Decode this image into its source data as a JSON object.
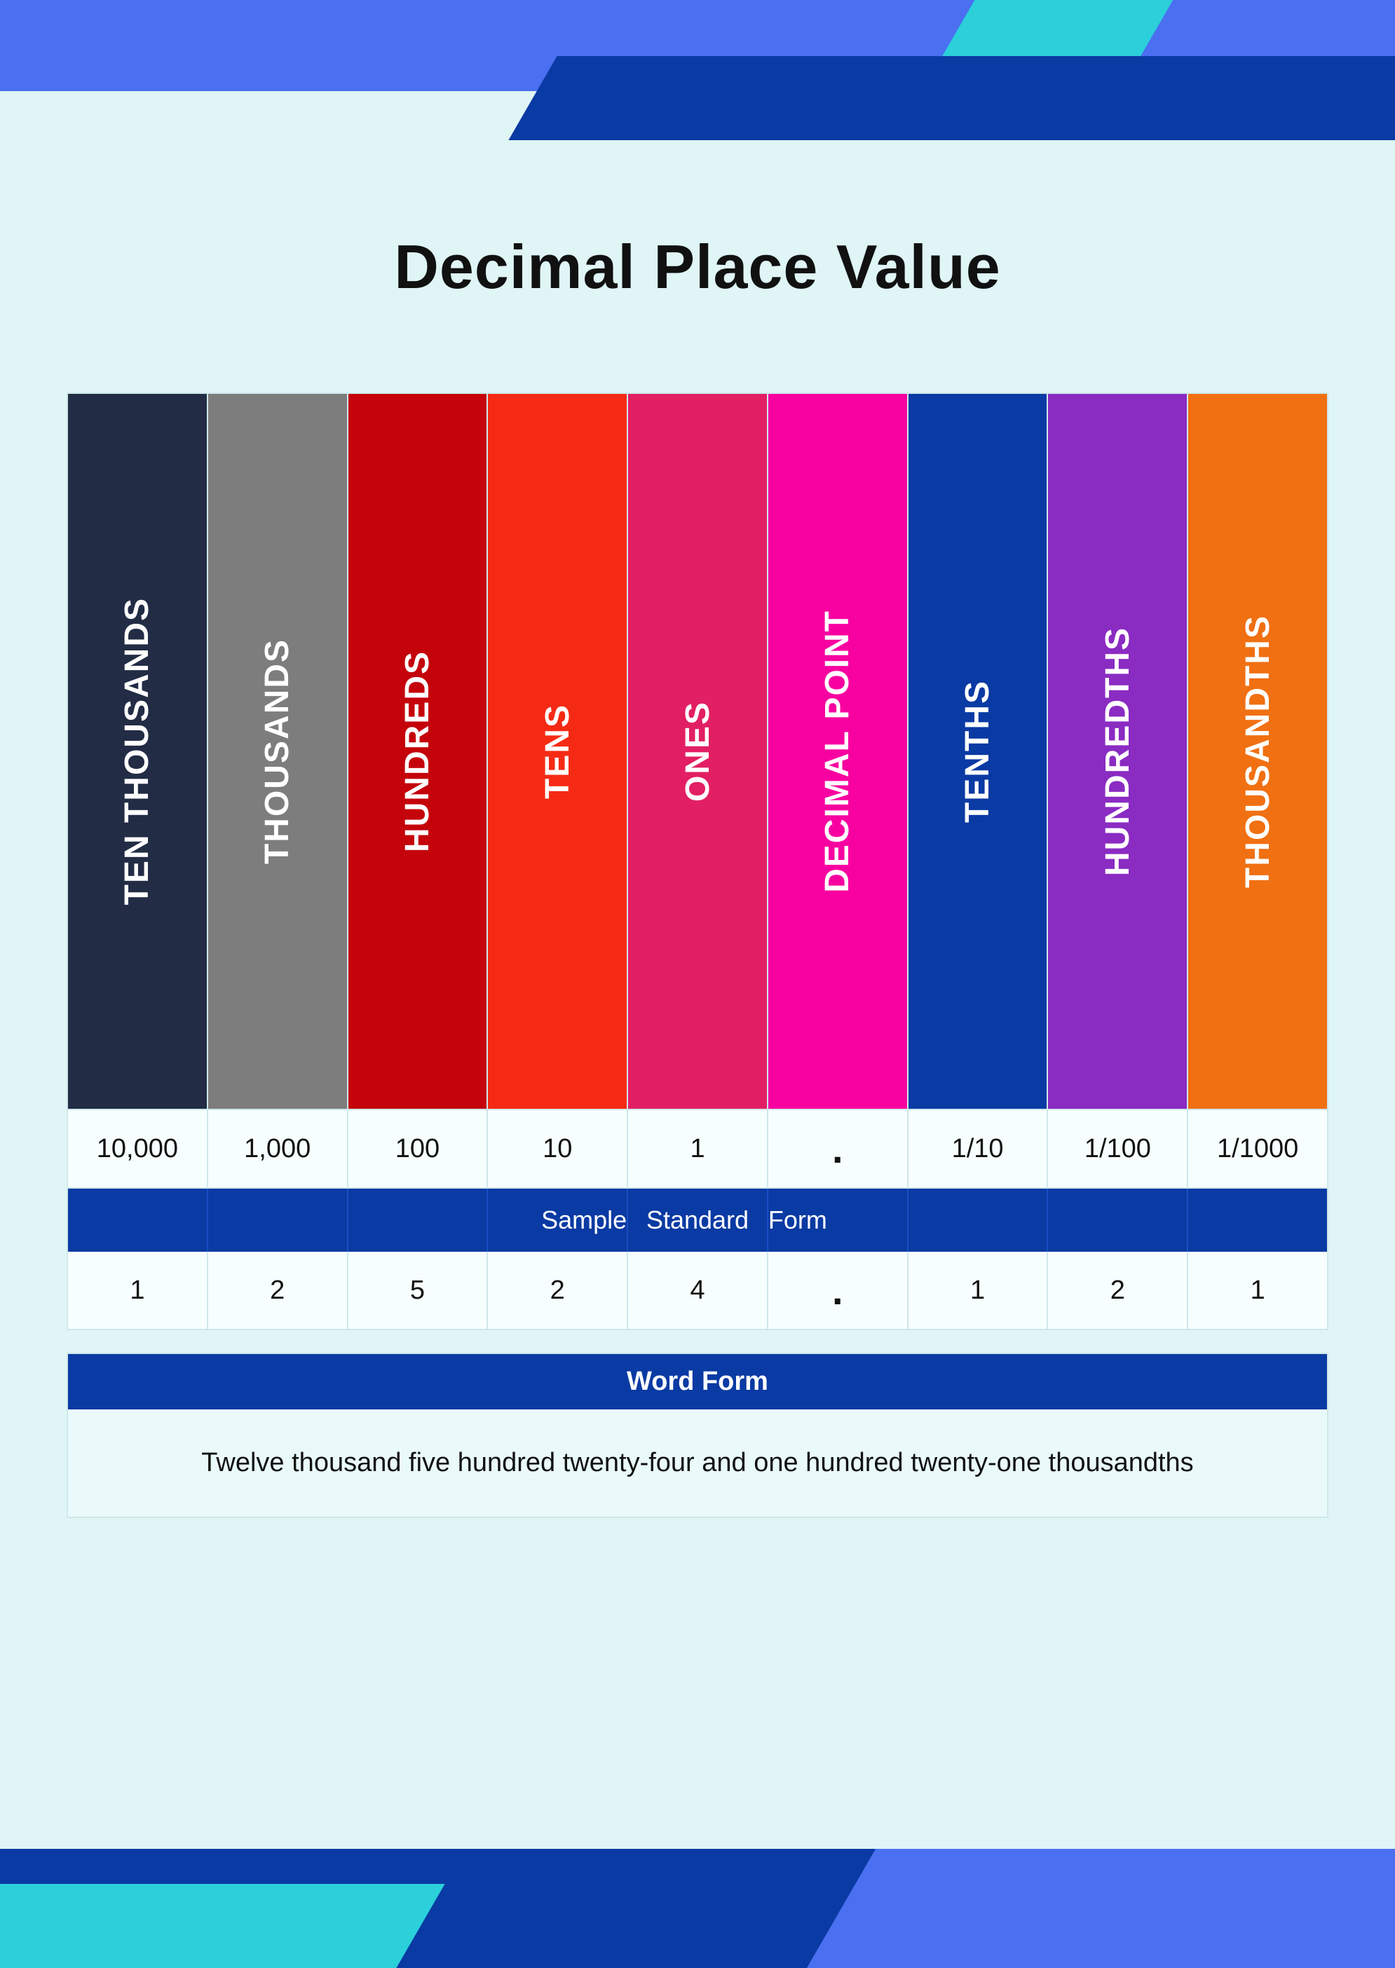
{
  "title": "Decimal Place Value",
  "banner_colors": {
    "light_blue": "#4a6ff0",
    "cyan": "#2bd0db",
    "dark_blue": "#0a3aa3"
  },
  "columns": [
    {
      "label": "TEN THOUSANDS",
      "color": "#222c45",
      "value": "10,000",
      "sample": "1"
    },
    {
      "label": "THOUSANDS",
      "color": "#7d7d7d",
      "value": "1,000",
      "sample": "2"
    },
    {
      "label": "HUNDREDS",
      "color": "#c4030b",
      "value": "100",
      "sample": "5"
    },
    {
      "label": "TENS",
      "color": "#f52a14",
      "value": "10",
      "sample": "2"
    },
    {
      "label": "ONES",
      "color": "#e21f63",
      "value": "1",
      "sample": "4"
    },
    {
      "label": "DECIMAL POINT",
      "color": "#f702a0",
      "value": ".",
      "sample": "."
    },
    {
      "label": "TENTHS",
      "color": "#0a3aa3",
      "value": "1/10",
      "sample": "1"
    },
    {
      "label": "HUNDREDTHS",
      "color": "#8a2bc2",
      "value": "1/100",
      "sample": "2"
    },
    {
      "label": "THOUSANDTHS",
      "color": "#f07012",
      "value": "1/1000",
      "sample": "1"
    }
  ],
  "sample_banner": [
    "",
    "",
    "",
    "Sample",
    "Standard",
    "Form",
    "",
    "",
    ""
  ],
  "word_form_label": "Word Form",
  "word_form_text": "Twelve thousand five hundred twenty-four and one hundred twenty-one thousandths"
}
